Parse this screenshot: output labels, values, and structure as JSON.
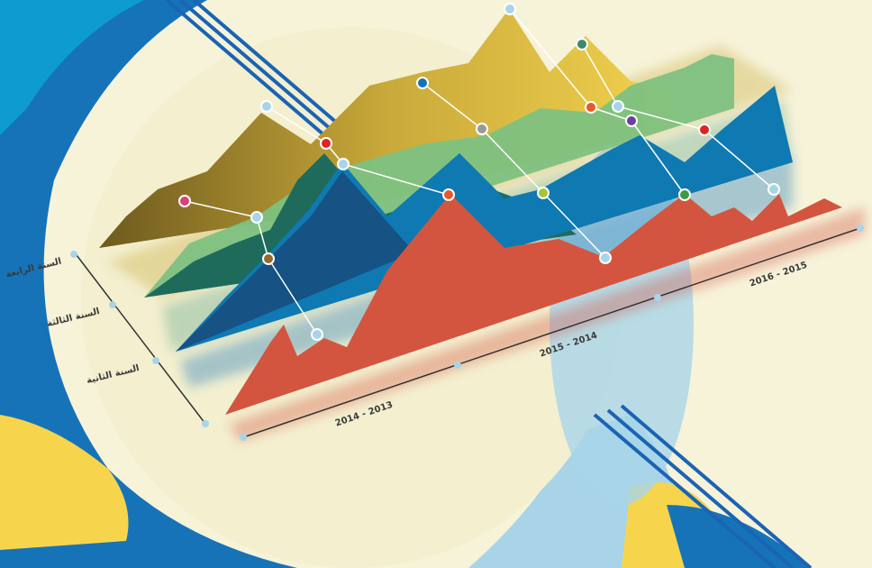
{
  "axis_labels": {
    "depth": [
      "السنة الرابعة",
      "السنة الثالثة",
      "السنة الثانية"
    ],
    "periods": [
      "2014 - 2013",
      "2015 - 2014",
      "2016 - 2015"
    ]
  }
}
